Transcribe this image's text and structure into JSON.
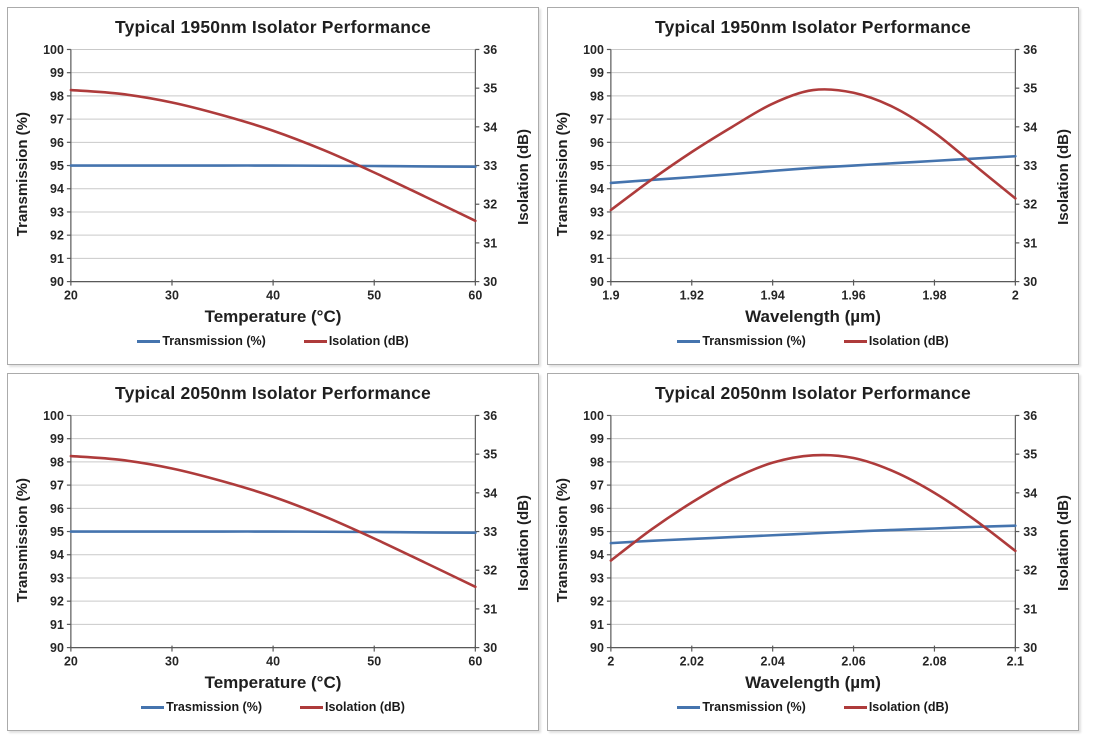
{
  "colors": {
    "transmission": "#4574AE",
    "isolation": "#AE3B3B",
    "grid": "#C9C9C9",
    "axis": "#595959",
    "text": "#1F1F1F",
    "panel_border": "#ABABAB"
  },
  "chart_data": [
    {
      "type": "line",
      "title": "Typical 1950nm Isolator Performance",
      "xlabel": "Temperature (°C)",
      "ylabel_left": "Transmission (%)",
      "ylabel_right": "Isolation (dB)",
      "xlim": [
        20,
        60
      ],
      "xtick_values": [
        20,
        30,
        40,
        50,
        60
      ],
      "xtick_labels": [
        "20",
        "30",
        "40",
        "50",
        "60"
      ],
      "ylim_left": [
        90,
        100
      ],
      "yticks_left": [
        90,
        91,
        92,
        93,
        94,
        95,
        96,
        97,
        98,
        99,
        100
      ],
      "ylim_right": [
        30,
        36
      ],
      "yticks_right": [
        30,
        31,
        32,
        33,
        34,
        35,
        36
      ],
      "grid": "horizontal",
      "legend_position": "bottom",
      "legend": [
        {
          "label": "Transmission (%)",
          "color": "#4574AE"
        },
        {
          "label": "Isolation (dB)",
          "color": "#AE3B3B"
        }
      ],
      "series": [
        {
          "name": "Transmission (%)",
          "axis": "left",
          "color": "#4574AE",
          "x": [
            20,
            25,
            30,
            35,
            40,
            45,
            50,
            55,
            60
          ],
          "y": [
            95.0,
            95.0,
            95.0,
            95.0,
            95.0,
            94.99,
            94.98,
            94.96,
            94.95
          ]
        },
        {
          "name": "Isolation (dB)",
          "axis": "right",
          "color": "#AE3B3B",
          "x": [
            20,
            25,
            30,
            35,
            40,
            45,
            50,
            55,
            60
          ],
          "y": [
            34.95,
            34.85,
            34.63,
            34.3,
            33.9,
            33.4,
            32.82,
            32.2,
            31.57
          ]
        }
      ]
    },
    {
      "type": "line",
      "title": "Typical 1950nm Isolator Performance",
      "xlabel": "Wavelength (µm)",
      "ylabel_left": "Transmission (%)",
      "ylabel_right": "Isolation (dB)",
      "xlim": [
        1.9,
        2.0
      ],
      "xtick_values": [
        1.9,
        1.92,
        1.94,
        1.96,
        1.98,
        2.0
      ],
      "xtick_labels": [
        "1.9",
        "1.92",
        "1.94",
        "1.96",
        "1.98",
        "2"
      ],
      "ylim_left": [
        90,
        100
      ],
      "yticks_left": [
        90,
        91,
        92,
        93,
        94,
        95,
        96,
        97,
        98,
        99,
        100
      ],
      "ylim_right": [
        30,
        36
      ],
      "yticks_right": [
        30,
        31,
        32,
        33,
        34,
        35,
        36
      ],
      "grid": "horizontal",
      "legend_position": "bottom",
      "legend": [
        {
          "label": "Transmission (%)",
          "color": "#4574AE"
        },
        {
          "label": "Isolation (dB)",
          "color": "#AE3B3B"
        }
      ],
      "series": [
        {
          "name": "Transmission (%)",
          "axis": "left",
          "color": "#4574AE",
          "x": [
            1.9,
            1.91,
            1.92,
            1.93,
            1.94,
            1.95,
            1.96,
            1.97,
            1.98,
            1.99,
            2.0
          ],
          "y": [
            94.25,
            94.38,
            94.5,
            94.63,
            94.77,
            94.9,
            95.0,
            95.1,
            95.2,
            95.3,
            95.4
          ]
        },
        {
          "name": "Isolation (dB)",
          "axis": "right",
          "color": "#AE3B3B",
          "x": [
            1.9,
            1.91,
            1.92,
            1.93,
            1.94,
            1.95,
            1.96,
            1.97,
            1.98,
            1.99,
            2.0
          ],
          "y": [
            31.85,
            32.63,
            33.35,
            34.0,
            34.6,
            34.95,
            34.88,
            34.5,
            33.85,
            33.0,
            32.15
          ]
        }
      ]
    },
    {
      "type": "line",
      "title": "Typical 2050nm Isolator Performance",
      "xlabel": "Temperature (°C)",
      "ylabel_left": "Transmission (%)",
      "ylabel_right": "Isolation (dB)",
      "xlim": [
        20,
        60
      ],
      "xtick_values": [
        20,
        30,
        40,
        50,
        60
      ],
      "xtick_labels": [
        "20",
        "30",
        "40",
        "50",
        "60"
      ],
      "ylim_left": [
        90,
        100
      ],
      "yticks_left": [
        90,
        91,
        92,
        93,
        94,
        95,
        96,
        97,
        98,
        99,
        100
      ],
      "ylim_right": [
        30,
        36
      ],
      "yticks_right": [
        30,
        31,
        32,
        33,
        34,
        35,
        36
      ],
      "grid": "horizontal",
      "legend_position": "bottom",
      "legend": [
        {
          "label": "Trasmission (%)",
          "color": "#4574AE"
        },
        {
          "label": "Isolation (dB)",
          "color": "#AE3B3B"
        }
      ],
      "series": [
        {
          "name": "Trasmission (%)",
          "axis": "left",
          "color": "#4574AE",
          "x": [
            20,
            25,
            30,
            35,
            40,
            45,
            50,
            55,
            60
          ],
          "y": [
            95.0,
            95.0,
            95.0,
            95.0,
            95.0,
            94.99,
            94.98,
            94.96,
            94.95
          ]
        },
        {
          "name": "Isolation (dB)",
          "axis": "right",
          "color": "#AE3B3B",
          "x": [
            20,
            25,
            30,
            35,
            40,
            45,
            50,
            55,
            60
          ],
          "y": [
            34.95,
            34.85,
            34.63,
            34.3,
            33.9,
            33.4,
            32.82,
            32.2,
            31.57
          ]
        }
      ]
    },
    {
      "type": "line",
      "title": "Typical 2050nm Isolator Performance",
      "xlabel": "Wavelength (µm)",
      "ylabel_left": "Transmission (%)",
      "ylabel_right": "Isolation (dB)",
      "xlim": [
        2.0,
        2.1
      ],
      "xtick_values": [
        2.0,
        2.02,
        2.04,
        2.06,
        2.08,
        2.1
      ],
      "xtick_labels": [
        "2",
        "2.02",
        "2.04",
        "2.06",
        "2.08",
        "2.1"
      ],
      "ylim_left": [
        90,
        100
      ],
      "yticks_left": [
        90,
        91,
        92,
        93,
        94,
        95,
        96,
        97,
        98,
        99,
        100
      ],
      "ylim_right": [
        30,
        36
      ],
      "yticks_right": [
        30,
        31,
        32,
        33,
        34,
        35,
        36
      ],
      "grid": "horizontal",
      "legend_position": "bottom",
      "legend": [
        {
          "label": "Transmission (%)",
          "color": "#4574AE"
        },
        {
          "label": "Isolation (dB)",
          "color": "#AE3B3B"
        }
      ],
      "series": [
        {
          "name": "Transmission (%)",
          "axis": "left",
          "color": "#4574AE",
          "x": [
            2.0,
            2.01,
            2.02,
            2.03,
            2.04,
            2.05,
            2.06,
            2.07,
            2.08,
            2.09,
            2.1
          ],
          "y": [
            94.5,
            94.6,
            94.68,
            94.76,
            94.84,
            94.92,
            95.0,
            95.07,
            95.13,
            95.2,
            95.25
          ]
        },
        {
          "name": "Isolation (dB)",
          "axis": "right",
          "color": "#AE3B3B",
          "x": [
            2.0,
            2.01,
            2.02,
            2.03,
            2.04,
            2.05,
            2.06,
            2.07,
            2.08,
            2.09,
            2.1
          ],
          "y": [
            32.25,
            33.05,
            33.75,
            34.35,
            34.78,
            34.97,
            34.9,
            34.55,
            34.0,
            33.3,
            32.5
          ]
        }
      ]
    }
  ]
}
